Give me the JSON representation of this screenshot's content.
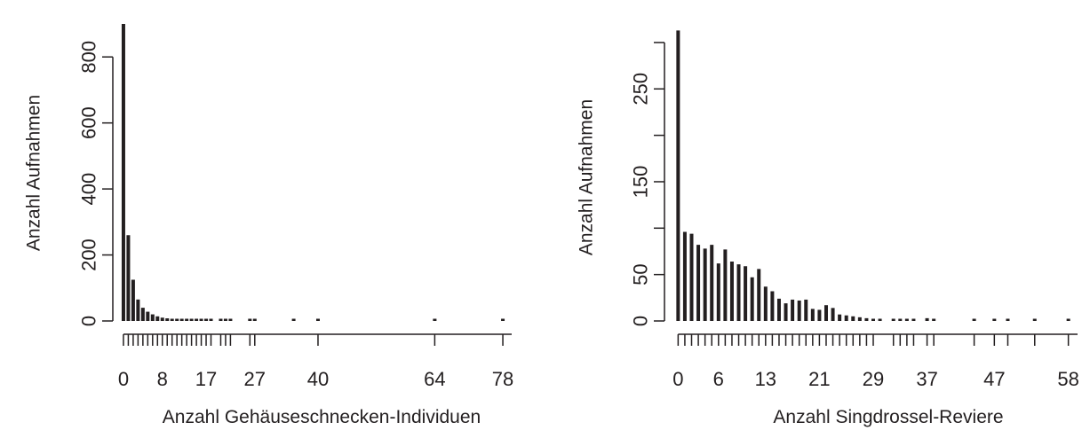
{
  "chart_data": [
    {
      "type": "bar",
      "title": "",
      "xlabel": "Anzahl Gehäuseschnecken-Individuen",
      "ylabel": "Anzahl Aufnahmen",
      "xlim": [
        -2,
        80
      ],
      "ylim": [
        0,
        900
      ],
      "yticks": [
        0,
        200,
        400,
        600,
        800
      ],
      "xtick_labels": [
        0,
        8,
        17,
        27,
        40,
        64,
        78
      ],
      "x_rug": [
        0,
        1,
        2,
        3,
        4,
        5,
        6,
        7,
        8,
        9,
        10,
        11,
        12,
        13,
        14,
        15,
        16,
        17,
        18,
        20,
        21,
        22,
        26,
        27
      ],
      "x": [
        0,
        1,
        2,
        3,
        4,
        5,
        6,
        7,
        8,
        9,
        10,
        11,
        12,
        13,
        14,
        15,
        16,
        17,
        18,
        20,
        21,
        22,
        26,
        27,
        35,
        40,
        64,
        78
      ],
      "values": [
        900,
        260,
        125,
        65,
        40,
        28,
        20,
        14,
        10,
        8,
        6,
        5,
        4,
        3,
        3,
        2,
        2,
        2,
        2,
        1,
        1,
        1,
        1,
        1,
        1,
        1,
        1,
        1
      ],
      "color": "#231f20"
    },
    {
      "type": "bar",
      "title": "",
      "xlabel": "Anzahl Singdrossel-Reviere",
      "ylabel": "Anzahl Aufnahmen",
      "xlim": [
        -1.5,
        59.5
      ],
      "ylim": [
        0,
        320
      ],
      "yticks": [
        0,
        50,
        150,
        250
      ],
      "yminor": [
        100,
        200,
        300
      ],
      "xtick_labels": [
        0,
        6,
        13,
        21,
        29,
        37,
        47,
        58
      ],
      "x_rug": [
        0,
        1,
        2,
        3,
        4,
        5,
        6,
        7,
        8,
        9,
        10,
        11,
        12,
        13,
        14,
        15,
        16,
        17,
        18,
        19,
        20,
        21,
        22,
        23,
        24,
        25,
        26,
        27,
        28,
        29,
        32,
        33,
        34,
        35,
        37,
        38,
        44,
        47,
        49,
        53,
        58
      ],
      "x": [
        0,
        1,
        2,
        3,
        4,
        5,
        6,
        7,
        8,
        9,
        10,
        11,
        12,
        13,
        14,
        15,
        16,
        17,
        18,
        19,
        20,
        21,
        22,
        23,
        24,
        25,
        26,
        27,
        28,
        29,
        30,
        32,
        33,
        34,
        35,
        37,
        38,
        44,
        47,
        49,
        53,
        58
      ],
      "values": [
        313,
        96,
        94,
        82,
        78,
        82,
        62,
        77,
        64,
        61,
        59,
        47,
        56,
        37,
        32,
        24,
        19,
        23,
        22,
        23,
        13,
        12,
        17,
        14,
        7,
        6,
        5,
        4,
        3,
        2,
        2,
        1,
        1,
        1,
        1,
        3,
        2,
        1,
        1,
        1,
        1,
        1
      ],
      "color": "#231f20"
    }
  ]
}
